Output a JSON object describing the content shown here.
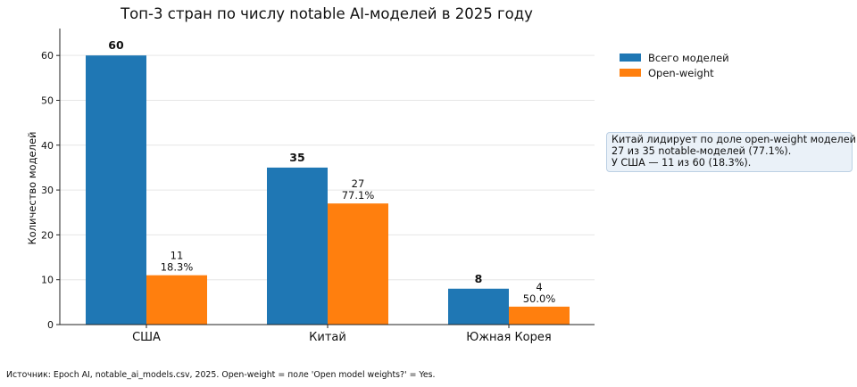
{
  "chart_data": {
    "type": "bar",
    "title": "Топ-3 стран по числу notable AI-моделей в 2025 году",
    "xlabel": "",
    "ylabel": "Количество моделей",
    "categories": [
      "США",
      "Китай",
      "Южная Корея"
    ],
    "series": [
      {
        "name": "Всего моделей",
        "color": "#1f77b4",
        "values": [
          60,
          35,
          8
        ],
        "labels": [
          "60",
          "35",
          "8"
        ]
      },
      {
        "name": "Open-weight",
        "color": "#ff7f0e",
        "values": [
          11,
          27,
          4
        ],
        "labels": [
          "11",
          "27",
          "4"
        ],
        "sublabels": [
          "18.3%",
          "77.1%",
          "50.0%"
        ]
      }
    ],
    "ylim": [
      0,
      66
    ],
    "yticks": [
      "0",
      "10",
      "20",
      "30",
      "40",
      "50",
      "60"
    ],
    "grid": "horizontal",
    "legend": "top-right, outside plot"
  },
  "annotation": {
    "lines": [
      "Китай лидирует по доле open-weight моделей:",
      "27 из 35 notable-моделей (77.1%).",
      "У США — 11 из 60 (18.3%)."
    ]
  },
  "source_note": "Источник: Epoch AI, notable_ai_models.csv, 2025. Open-weight = поле 'Open model weights?' = Yes."
}
